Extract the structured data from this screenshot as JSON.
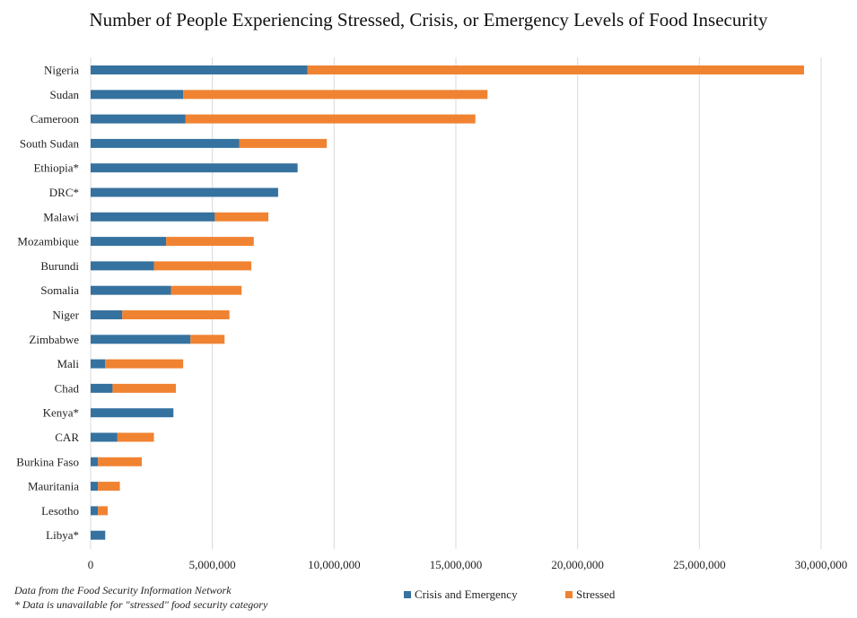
{
  "chart_data": {
    "type": "bar",
    "orientation": "horizontal",
    "stacked": true,
    "title": "Number of People Experiencing Stressed, Crisis, or Emergency Levels of Food Insecurity",
    "categories": [
      "Nigeria",
      "Sudan",
      "Cameroon",
      "South Sudan",
      "Ethiopia*",
      "DRC*",
      "Malawi",
      "Mozambique",
      "Burundi",
      "Somalia",
      "Niger",
      "Zimbabwe",
      "Mali",
      "Chad",
      "Kenya*",
      "CAR",
      "Burkina Faso",
      "Mauritania",
      "Lesotho",
      "Libya*"
    ],
    "series": [
      {
        "name": "Crisis and Emergency",
        "color": "#3672a0",
        "values": [
          8900000,
          3800000,
          3900000,
          6100000,
          8500000,
          7700000,
          5100000,
          3100000,
          2600000,
          3300000,
          1300000,
          4100000,
          600000,
          900000,
          3400000,
          1100000,
          300000,
          300000,
          300000,
          600000
        ]
      },
      {
        "name": "Stressed",
        "color": "#f08332",
        "values": [
          20400000,
          12500000,
          11900000,
          3600000,
          0,
          0,
          2200000,
          3600000,
          4000000,
          2900000,
          4400000,
          1400000,
          3200000,
          2600000,
          0,
          1500000,
          1800000,
          900000,
          400000,
          0
        ]
      }
    ],
    "xlim": [
      0,
      30000000
    ],
    "xticks": [
      "0",
      "5,000,000",
      "10,000,000",
      "15,000,000",
      "20,000,000",
      "25,000,000",
      "30,000,000"
    ],
    "grid": "vertical",
    "legend_placement": "bottom"
  },
  "notes": {
    "source": "Data from the Food Security Information Network",
    "asterisk": "* Data is unavailable for \"stressed\" food security category"
  }
}
